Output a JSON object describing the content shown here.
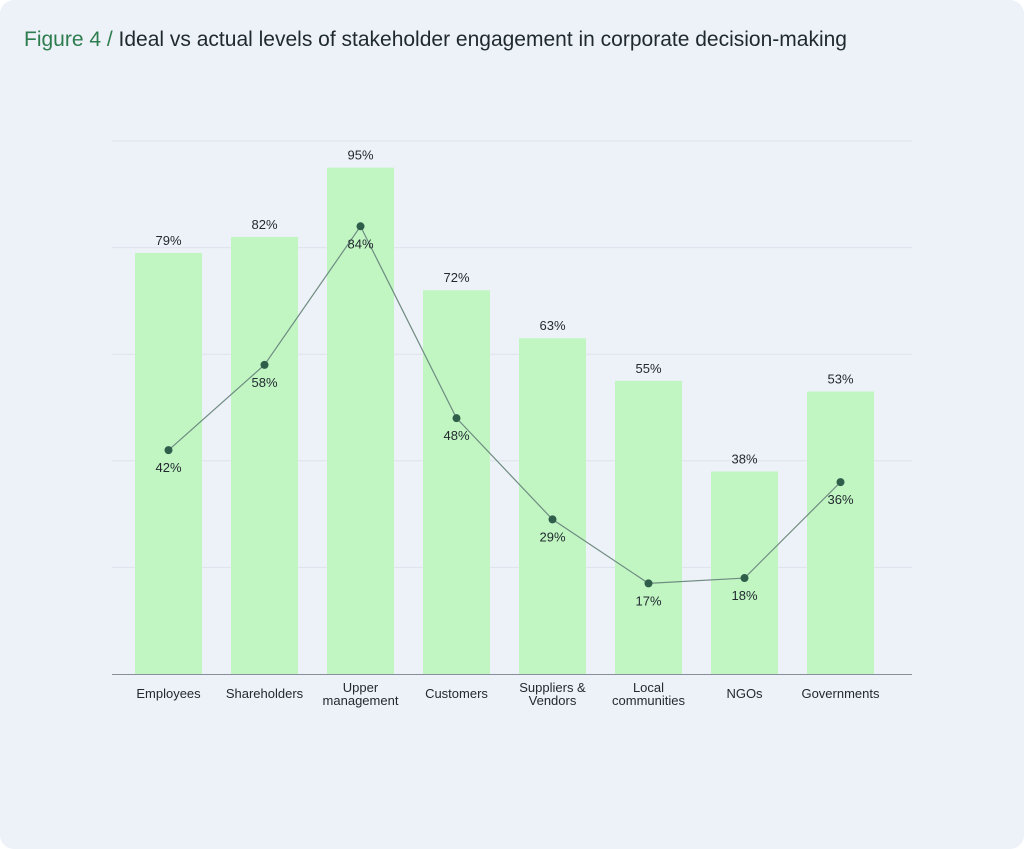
{
  "title": {
    "prefix": "Figure 4 / ",
    "text": "Ideal vs actual levels of stakeholder engagement in corporate decision-making"
  },
  "colors": {
    "card_background": "#edf1f8",
    "bar": "#c1f6c3",
    "line": "#6f8c80",
    "marker": "#2f5f4a",
    "title_accent": "#2e7d4f",
    "gridline": "#dde3ec",
    "axis": "#8a9099"
  },
  "chart_data": {
    "type": "bar",
    "title": "Ideal vs actual levels of stakeholder engagement in corporate decision-making",
    "categories": [
      [
        "Employees"
      ],
      [
        "Shareholders"
      ],
      [
        "Upper",
        "management"
      ],
      [
        "Customers"
      ],
      [
        "Suppliers &",
        "Vendors"
      ],
      [
        "Local",
        "communities"
      ],
      [
        "NGOs"
      ],
      [
        "Governments"
      ]
    ],
    "series": [
      {
        "kind": "bar",
        "values": [
          79,
          82,
          95,
          72,
          63,
          55,
          38,
          53
        ],
        "labels": [
          "79%",
          "82%",
          "95%",
          "72%",
          "63%",
          "55%",
          "38%",
          "53%"
        ]
      },
      {
        "kind": "line",
        "values": [
          42,
          58,
          84,
          48,
          29,
          17,
          18,
          36
        ],
        "labels": [
          "42%",
          "58%",
          "84%",
          "48%",
          "29%",
          "17%",
          "18%",
          "36%"
        ]
      }
    ],
    "ylim": [
      0,
      100
    ],
    "yticks": [
      20,
      40,
      60,
      80,
      100
    ],
    "grid": true,
    "y_axis_labels_shown": false,
    "xlabel": "",
    "ylabel": ""
  }
}
